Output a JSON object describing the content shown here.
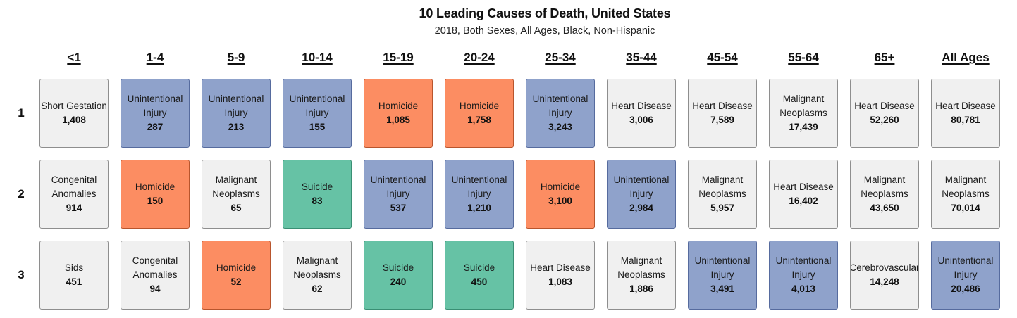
{
  "title": "10 Leading Causes of Death, United States",
  "subtitle": "2018, Both Sexes, All Ages, Black, Non-Hispanic",
  "chart_data": {
    "type": "table",
    "title": "10 Leading Causes of Death, United States",
    "subtitle": "2018, Both Sexes, All Ages, Black, Non-Hispanic",
    "columns": [
      "<1",
      "1-4",
      "5-9",
      "10-14",
      "15-19",
      "20-24",
      "25-34",
      "35-44",
      "45-54",
      "55-64",
      "65+",
      "All Ages"
    ],
    "row_labels": [
      "1",
      "2",
      "3"
    ],
    "legend_colors": {
      "Unintentional Injury": "#8fa2cb",
      "Homicide": "#fc8d62",
      "Suicide": "#66c2a5",
      "Other": "#f0f0f0"
    },
    "rows": [
      [
        {
          "cause": "Short Gestation",
          "count": "1,408",
          "color": "#f0f0f0"
        },
        {
          "cause": "Unintentional\nInjury",
          "count": "287",
          "color": "#8fa2cb"
        },
        {
          "cause": "Unintentional\nInjury",
          "count": "213",
          "color": "#8fa2cb"
        },
        {
          "cause": "Unintentional\nInjury",
          "count": "155",
          "color": "#8fa2cb"
        },
        {
          "cause": "Homicide",
          "count": "1,085",
          "color": "#fc8d62"
        },
        {
          "cause": "Homicide",
          "count": "1,758",
          "color": "#fc8d62"
        },
        {
          "cause": "Unintentional\nInjury",
          "count": "3,243",
          "color": "#8fa2cb"
        },
        {
          "cause": "Heart Disease",
          "count": "3,006",
          "color": "#f0f0f0"
        },
        {
          "cause": "Heart Disease",
          "count": "7,589",
          "color": "#f0f0f0"
        },
        {
          "cause": "Malignant\nNeoplasms",
          "count": "17,439",
          "color": "#f0f0f0"
        },
        {
          "cause": "Heart Disease",
          "count": "52,260",
          "color": "#f0f0f0"
        },
        {
          "cause": "Heart Disease",
          "count": "80,781",
          "color": "#f0f0f0"
        }
      ],
      [
        {
          "cause": "Congenital\nAnomalies",
          "count": "914",
          "color": "#f0f0f0"
        },
        {
          "cause": "Homicide",
          "count": "150",
          "color": "#fc8d62"
        },
        {
          "cause": "Malignant\nNeoplasms",
          "count": "65",
          "color": "#f0f0f0"
        },
        {
          "cause": "Suicide",
          "count": "83",
          "color": "#66c2a5"
        },
        {
          "cause": "Unintentional\nInjury",
          "count": "537",
          "color": "#8fa2cb"
        },
        {
          "cause": "Unintentional\nInjury",
          "count": "1,210",
          "color": "#8fa2cb"
        },
        {
          "cause": "Homicide",
          "count": "3,100",
          "color": "#fc8d62"
        },
        {
          "cause": "Unintentional\nInjury",
          "count": "2,984",
          "color": "#8fa2cb"
        },
        {
          "cause": "Malignant\nNeoplasms",
          "count": "5,957",
          "color": "#f0f0f0"
        },
        {
          "cause": "Heart Disease",
          "count": "16,402",
          "color": "#f0f0f0"
        },
        {
          "cause": "Malignant\nNeoplasms",
          "count": "43,650",
          "color": "#f0f0f0"
        },
        {
          "cause": "Malignant\nNeoplasms",
          "count": "70,014",
          "color": "#f0f0f0"
        }
      ],
      [
        {
          "cause": "Sids",
          "count": "451",
          "color": "#f0f0f0"
        },
        {
          "cause": "Congenital\nAnomalies",
          "count": "94",
          "color": "#f0f0f0"
        },
        {
          "cause": "Homicide",
          "count": "52",
          "color": "#fc8d62"
        },
        {
          "cause": "Malignant\nNeoplasms",
          "count": "62",
          "color": "#f0f0f0"
        },
        {
          "cause": "Suicide",
          "count": "240",
          "color": "#66c2a5"
        },
        {
          "cause": "Suicide",
          "count": "450",
          "color": "#66c2a5"
        },
        {
          "cause": "Heart Disease",
          "count": "1,083",
          "color": "#f0f0f0"
        },
        {
          "cause": "Malignant\nNeoplasms",
          "count": "1,886",
          "color": "#f0f0f0"
        },
        {
          "cause": "Unintentional\nInjury",
          "count": "3,491",
          "color": "#8fa2cb"
        },
        {
          "cause": "Unintentional\nInjury",
          "count": "4,013",
          "color": "#8fa2cb"
        },
        {
          "cause": "Cerebrovascular",
          "count": "14,248",
          "color": "#f0f0f0"
        },
        {
          "cause": "Unintentional\nInjury",
          "count": "20,486",
          "color": "#8fa2cb"
        }
      ]
    ]
  }
}
